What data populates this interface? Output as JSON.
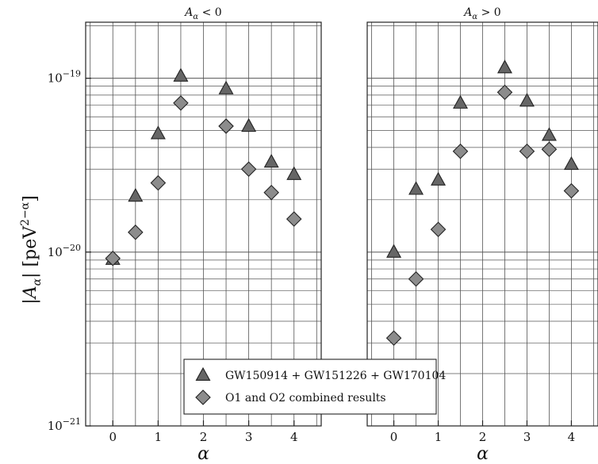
{
  "chart_data": [
    {
      "type": "scatter",
      "title": "A_α < 0",
      "title_parts": {
        "symbol": "A",
        "subscript": "α",
        "relation": " < 0"
      },
      "xlabel": "α",
      "ylabel": "|A_α|  [peV^(2−α)]",
      "ylabel_parts": {
        "abs_open": "|",
        "symbol": "A",
        "subscript": "α",
        "abs_close": "|",
        "unit_prefix": "[peV",
        "exponent": "2−α",
        "unit_suffix": "]"
      },
      "xlim": [
        -0.6,
        4.6
      ],
      "ylim": [
        1e-21,
        2.1e-19
      ],
      "yscale": "log",
      "xticks": [
        0,
        1,
        2,
        3,
        4
      ],
      "xtick_labels": [
        "0",
        "1",
        "2",
        "3",
        "4"
      ],
      "yticks": [
        1e-21,
        1e-20,
        1e-19
      ],
      "ytick_labels": [
        {
          "base": "10",
          "exp": "−21"
        },
        {
          "base": "10",
          "exp": "−20"
        },
        {
          "base": "10",
          "exp": "−19"
        }
      ],
      "grid": true,
      "series": [
        {
          "name": "GW150914 + GW151226 + GW170104",
          "marker": "triangle",
          "color": "#666666",
          "x": [
            0,
            0.5,
            1,
            1.5,
            2.5,
            3,
            3.5,
            4
          ],
          "y": [
            9.1e-21,
            2.1e-20,
            4.8e-20,
            1.03e-19,
            8.7e-20,
            5.3e-20,
            3.3e-20,
            2.8e-20
          ]
        },
        {
          "name": "O1 and O2 combined results",
          "marker": "diamond",
          "color": "#8c8c8c",
          "x": [
            0,
            0.5,
            1,
            1.5,
            2.5,
            3,
            3.5,
            4
          ],
          "y": [
            9.2e-21,
            1.3e-20,
            2.5e-20,
            7.2e-20,
            5.3e-20,
            3e-20,
            2.2e-20,
            1.55e-20
          ]
        }
      ]
    },
    {
      "type": "scatter",
      "title": "A_α > 0",
      "title_parts": {
        "symbol": "A",
        "subscript": "α",
        "relation": " > 0"
      },
      "xlabel": "α",
      "xlim": [
        -0.6,
        4.6
      ],
      "ylim": [
        1e-21,
        2.1e-19
      ],
      "yscale": "log",
      "xticks": [
        0,
        1,
        2,
        3,
        4
      ],
      "xtick_labels": [
        "0",
        "1",
        "2",
        "3",
        "4"
      ],
      "grid": true,
      "series": [
        {
          "name": "GW150914 + GW151226 + GW170104",
          "marker": "triangle",
          "color": "#666666",
          "x": [
            0,
            0.5,
            1,
            1.5,
            2.5,
            3,
            3.5,
            4
          ],
          "y": [
            1e-20,
            2.3e-20,
            2.6e-20,
            7.2e-20,
            1.15e-19,
            7.4e-20,
            4.7e-20,
            3.2e-20
          ]
        },
        {
          "name": "O1 and O2 combined results",
          "marker": "diamond",
          "color": "#8c8c8c",
          "x": [
            0,
            0.5,
            1,
            1.5,
            2.5,
            3,
            3.5,
            4
          ],
          "y": [
            3.2e-21,
            7e-21,
            1.35e-20,
            3.8e-20,
            8.3e-20,
            3.8e-20,
            3.9e-20,
            2.25e-20
          ]
        }
      ]
    }
  ],
  "legend": {
    "placement": "lower-center",
    "entries": [
      {
        "marker": "triangle",
        "label": "GW150914 + GW151226 + GW170104"
      },
      {
        "marker": "diamond",
        "label": "O1 and O2 combined results"
      }
    ]
  }
}
